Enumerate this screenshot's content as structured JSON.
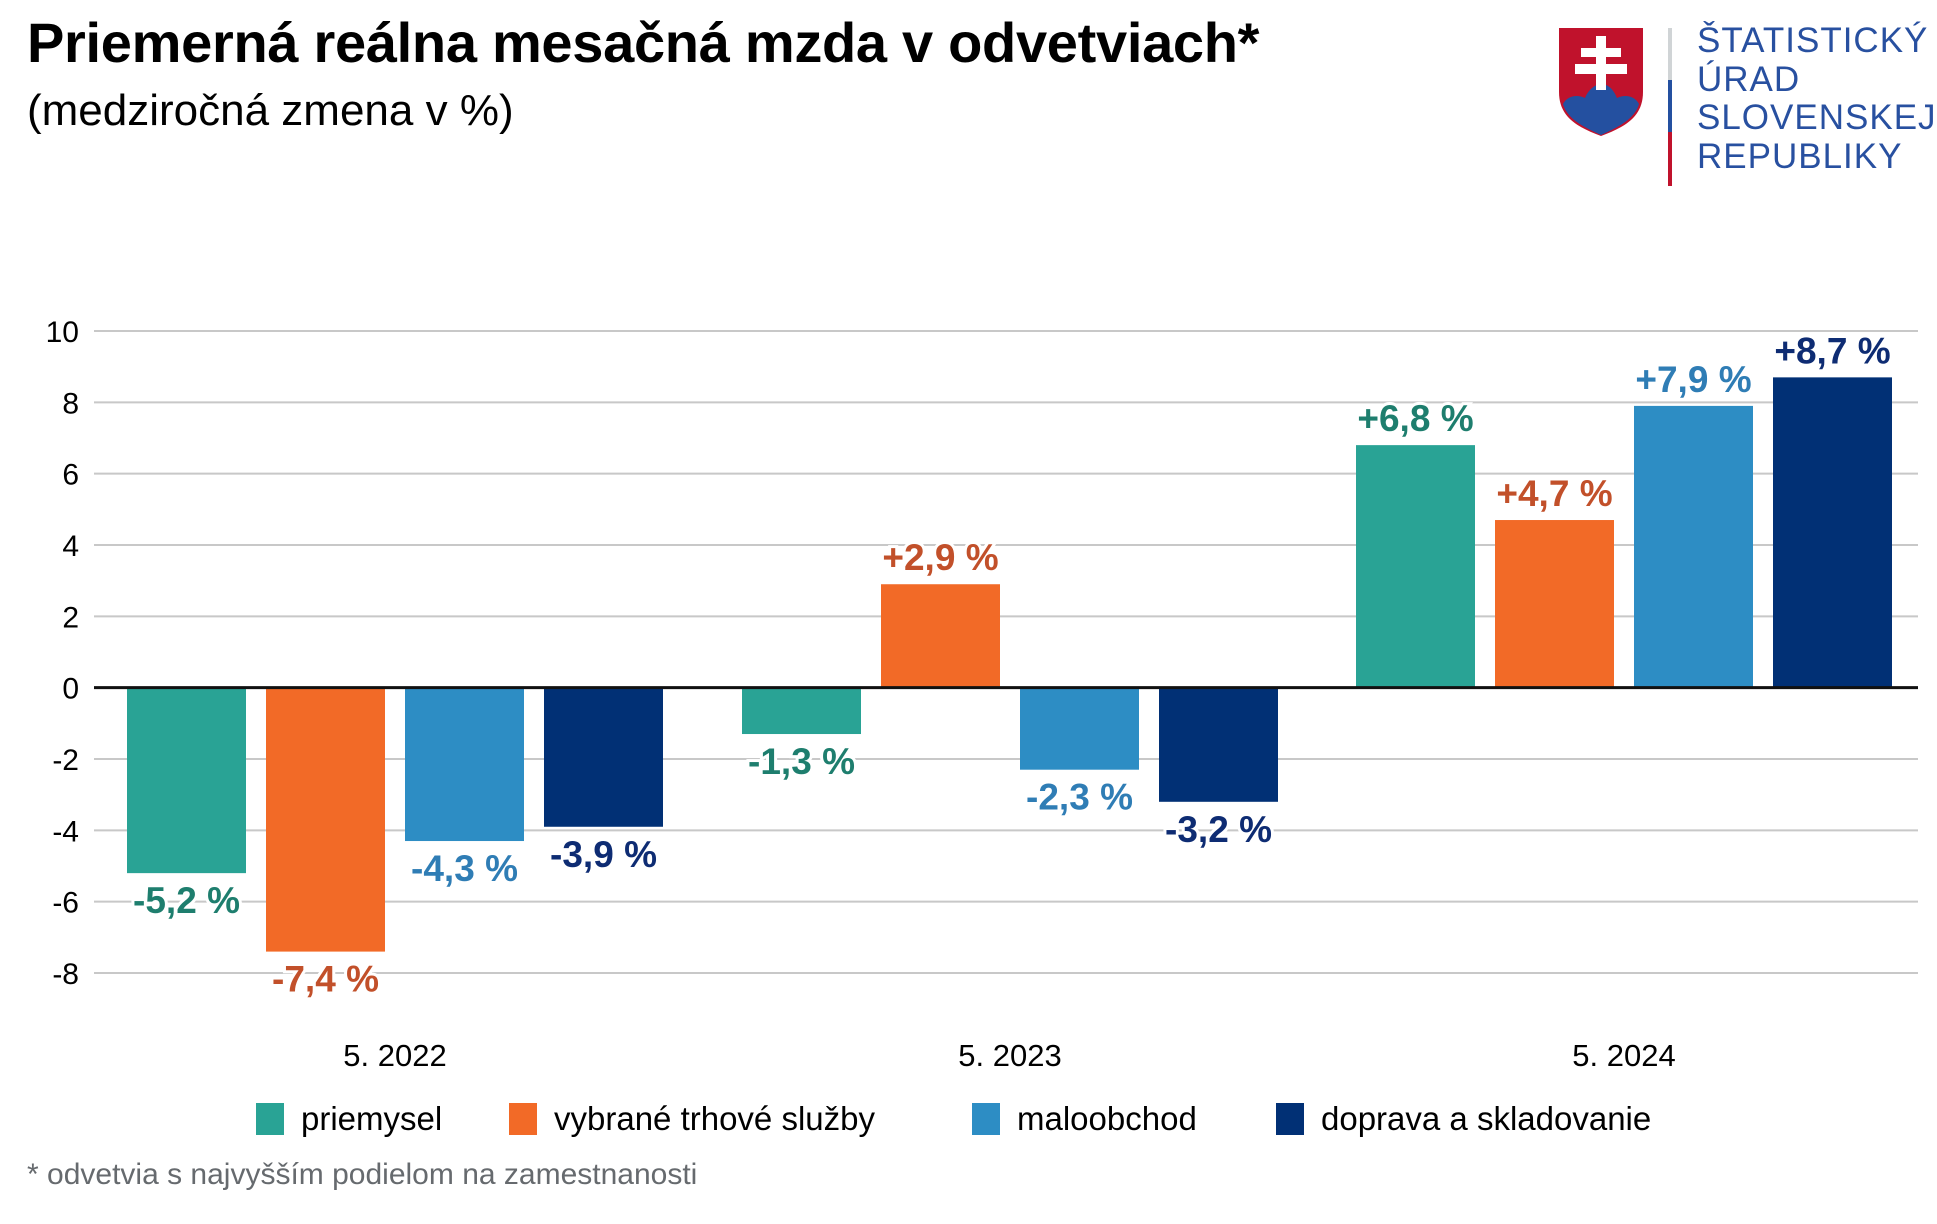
{
  "header": {
    "title": "Priemerná reálna mesačná mzda v odvetviach*",
    "subtitle": "(medziročná zmena v %)"
  },
  "logo": {
    "icon": "slovak-coat-of-arms-icon",
    "lines": [
      "ŠTATISTICKÝ",
      "ÚRAD",
      "SLOVENSKEJ",
      "REPUBLIKY"
    ],
    "text_color": "#2850A0"
  },
  "footnote": "* odvetvia s najvyšším podielom na zamestnanosti",
  "chart_data": {
    "type": "bar",
    "title": "Priemerná reálna mesačná mzda v odvetviach*",
    "subtitle": "(medziročná zmena v %)",
    "xlabel": "",
    "ylabel": "",
    "categories": [
      "5. 2022",
      "5. 2023",
      "5. 2024"
    ],
    "ylim": [
      -8,
      10
    ],
    "yticks": [
      10,
      8,
      6,
      4,
      2,
      0,
      -2,
      -4,
      -6,
      -8
    ],
    "grid": true,
    "legend_position": "bottom",
    "series": [
      {
        "name": "priemysel",
        "color": "#29A395",
        "label_color": "#1E7E6E",
        "values": [
          -5.2,
          -1.3,
          6.8
        ],
        "labels": [
          "-5,2 %",
          "-1,3 %",
          "+6,8 %"
        ]
      },
      {
        "name": "vybrané trhové služby",
        "color": "#F26A27",
        "label_color": "#C2502A",
        "values": [
          -7.4,
          2.9,
          4.7
        ],
        "labels": [
          "-7,4 %",
          "+2,9 %",
          "+4,7 %"
        ]
      },
      {
        "name": "maloobchod",
        "color": "#2D8DC4",
        "label_color": "#2F7DB5",
        "values": [
          -4.3,
          -2.3,
          7.9
        ],
        "labels": [
          "-4,3 %",
          "-2,3 %",
          "+7,9 %"
        ]
      },
      {
        "name": "doprava a skladovanie",
        "color": "#013075",
        "label_color": "#0E2C73",
        "values": [
          -3.9,
          -3.2,
          8.7
        ],
        "labels": [
          "-3,9 %",
          "-3,2 %",
          "+8,7 %"
        ]
      }
    ]
  }
}
